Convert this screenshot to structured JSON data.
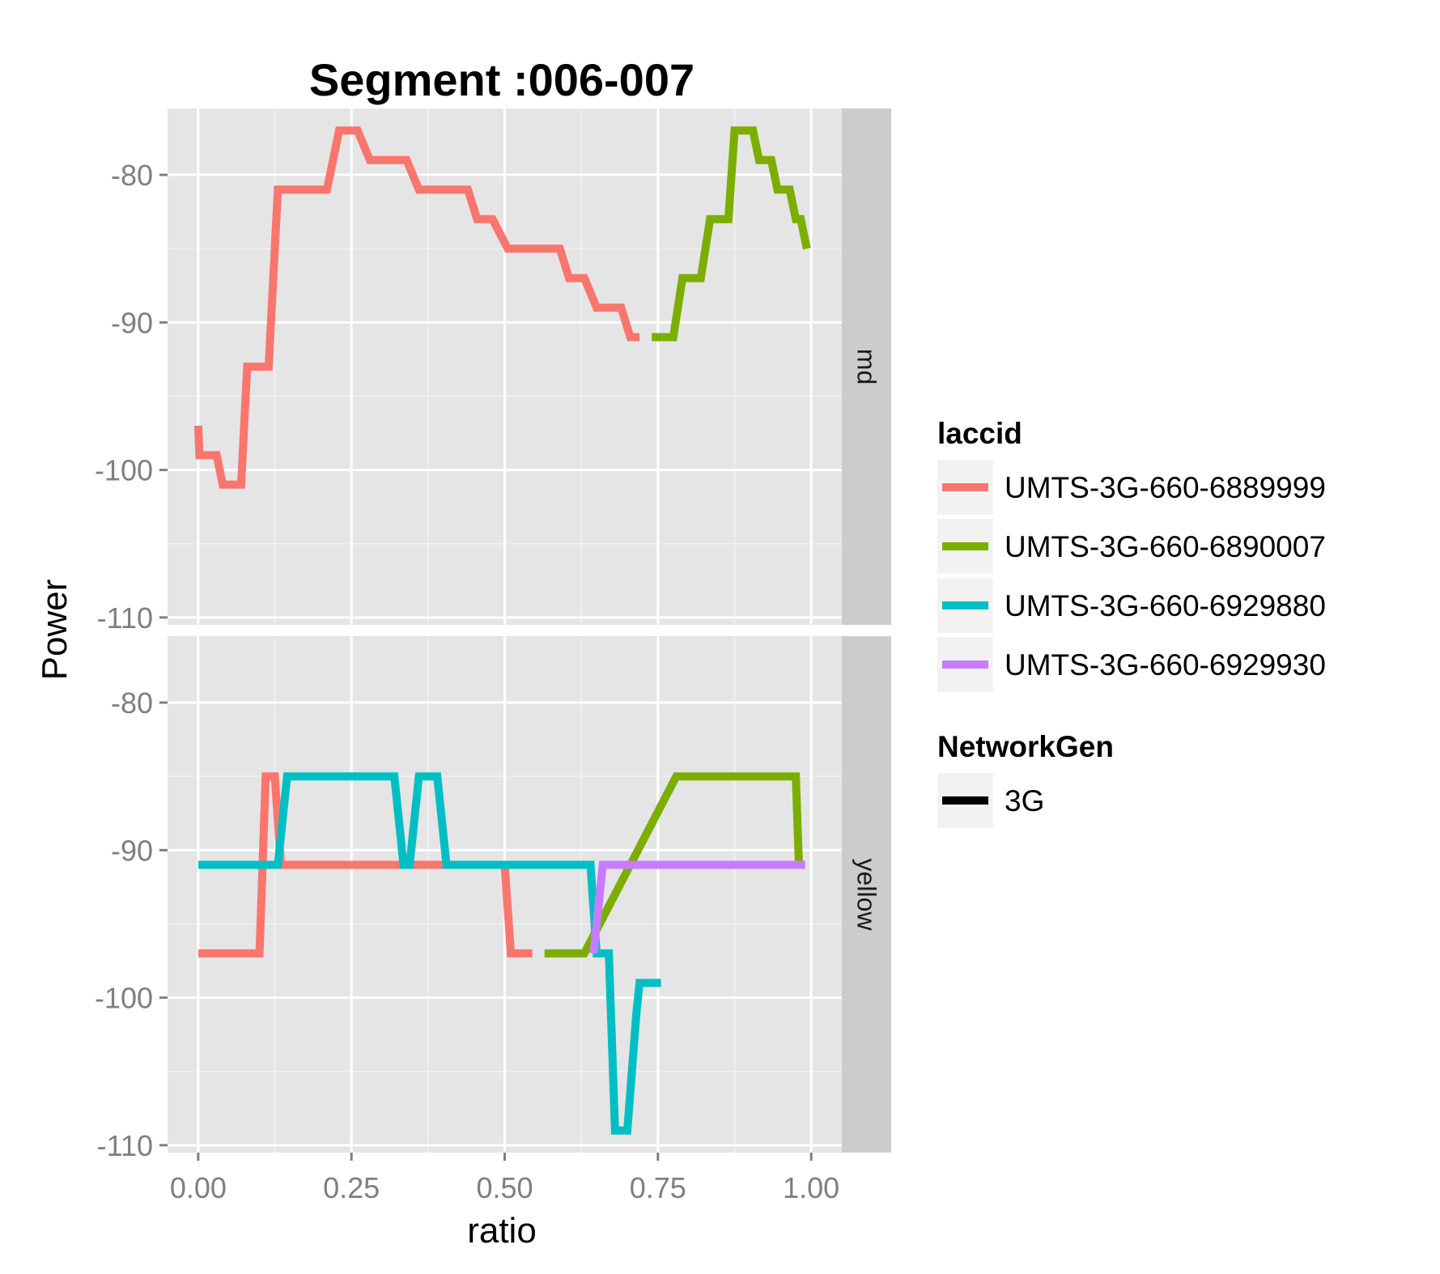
{
  "chart_data": {
    "type": "line",
    "title": "Segment :006-007",
    "xlabel": "ratio",
    "ylabel": "Power",
    "xlim": [
      -0.05,
      1.05
    ],
    "ylim": [
      -110.5,
      -75.5
    ],
    "x_ticks": [
      0,
      0.25,
      0.5,
      0.75,
      1
    ],
    "x_tick_labels": [
      "0.00",
      "0.25",
      "0.50",
      "0.75",
      "1.00"
    ],
    "y_ticks": [
      -110,
      -100,
      -90,
      -80
    ],
    "y_tick_labels": [
      "-110",
      "-100",
      "-90",
      "-80"
    ],
    "grid": true,
    "colors": {
      "UMTS-3G-660-6889999": "#F8766D",
      "UMTS-3G-660-6890007": "#7CAE00",
      "UMTS-3G-660-6929880": "#00BFC4",
      "UMTS-3G-660-6929930": "#C77CFF"
    },
    "panels": [
      {
        "strip": "md",
        "series": [
          {
            "name": "UMTS-3G-660-6889999",
            "x": [
              0,
              0.002,
              0.005,
              0.03,
              0.04,
              0.07,
              0.08,
              0.1,
              0.115,
              0.13,
              0.21,
              0.23,
              0.26,
              0.28,
              0.34,
              0.36,
              0.44,
              0.455,
              0.48,
              0.505,
              0.59,
              0.605,
              0.63,
              0.65,
              0.69,
              0.705,
              0.72
            ],
            "y": [
              -97,
              -99,
              -99,
              -99,
              -101,
              -101,
              -93,
              -93,
              -93,
              -81,
              -81,
              -77,
              -77,
              -79,
              -79,
              -81,
              -81,
              -83,
              -83,
              -85,
              -85,
              -87,
              -87,
              -89,
              -89,
              -91,
              -91
            ]
          },
          {
            "name": "UMTS-3G-660-6890007",
            "x": [
              0.74,
              0.775,
              0.79,
              0.82,
              0.835,
              0.865,
              0.875,
              0.905,
              0.915,
              0.935,
              0.945,
              0.965,
              0.975,
              0.983,
              0.993
            ],
            "y": [
              -91,
              -91,
              -87,
              -87,
              -83,
              -83,
              -77,
              -77,
              -79,
              -79,
              -81,
              -81,
              -83,
              -83,
              -85
            ]
          }
        ]
      },
      {
        "strip": "yellow",
        "series": [
          {
            "name": "UMTS-3G-660-6889999",
            "x": [
              0,
              0.1,
              0.11,
              0.125,
              0.135,
              0.5,
              0.51,
              0.545
            ],
            "y": [
              -97,
              -97,
              -85,
              -85,
              -91,
              -91,
              -97,
              -97
            ]
          },
          {
            "name": "UMTS-3G-660-6890007",
            "x": [
              0.565,
              0.63,
              0.78,
              0.975,
              0.98,
              0.99
            ],
            "y": [
              -97,
              -97,
              -85,
              -85,
              -91,
              -91
            ]
          },
          {
            "name": "UMTS-3G-660-6929880",
            "x": [
              0,
              0.13,
              0.145,
              0.32,
              0.335,
              0.345,
              0.36,
              0.38,
              0.39,
              0.405,
              0.64,
              0.65,
              0.67,
              0.68,
              0.7,
              0.715,
              0.72,
              0.755
            ],
            "y": [
              -91,
              -91,
              -85,
              -85,
              -91,
              -91,
              -85,
              -85,
              -85,
              -91,
              -91,
              -97,
              -97,
              -109,
              -109,
              -101,
              -99,
              -99
            ]
          },
          {
            "name": "UMTS-3G-660-6929930",
            "x": [
              0.645,
              0.66,
              0.67,
              0.99
            ],
            "y": [
              -97,
              -91,
              -91,
              -91
            ]
          }
        ]
      }
    ],
    "legends": [
      {
        "title": "laccid",
        "entries": [
          "UMTS-3G-660-6889999",
          "UMTS-3G-660-6890007",
          "UMTS-3G-660-6929880",
          "UMTS-3G-660-6929930"
        ]
      },
      {
        "title": "NetworkGen",
        "entries": [
          "3G"
        ],
        "key_color": "#000000"
      }
    ]
  }
}
